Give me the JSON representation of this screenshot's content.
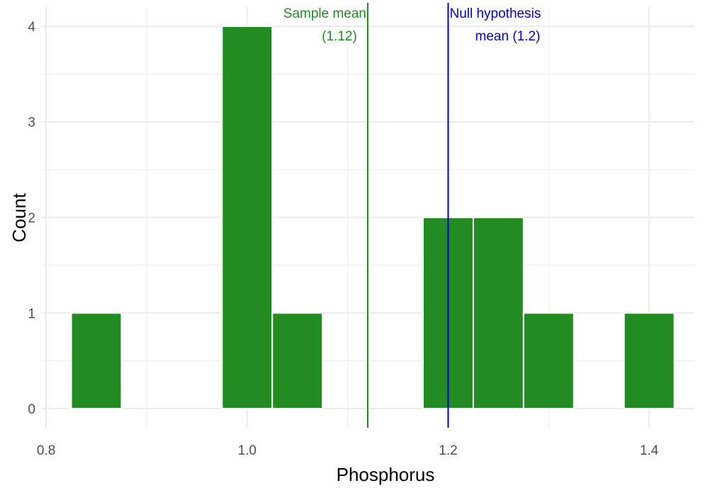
{
  "chart_data": {
    "type": "histogram",
    "xlabel": "Phosphorus",
    "ylabel": "Count",
    "xlim": [
      0.795,
      1.445
    ],
    "ylim": [
      -0.2,
      4.2
    ],
    "x_ticks": [
      0.8,
      1.0,
      1.2,
      1.4
    ],
    "x_tick_labels": [
      "0.8",
      "1.0",
      "1.2",
      "1.4"
    ],
    "y_ticks": [
      0,
      1,
      2,
      3,
      4
    ],
    "y_tick_labels": [
      "0",
      "1",
      "2",
      "3",
      "4"
    ],
    "grid": true,
    "bar_color": "#228b22",
    "bin_width": 0.05,
    "bins": [
      {
        "center": 0.85,
        "count": 1
      },
      {
        "center": 1.0,
        "count": 4
      },
      {
        "center": 1.05,
        "count": 1
      },
      {
        "center": 1.2,
        "count": 2
      },
      {
        "center": 1.25,
        "count": 2
      },
      {
        "center": 1.3,
        "count": 1
      },
      {
        "center": 1.4,
        "count": 1
      }
    ],
    "reference_lines": [
      {
        "x": 1.12,
        "color": "#228b22",
        "label_lines": [
          "Sample mean",
          "(1.12)"
        ],
        "label_anchor": "end"
      },
      {
        "x": 1.2,
        "color": "#0000cd",
        "label_lines": [
          "Null hypothesis",
          "mean (1.2)"
        ],
        "label_anchor": "start"
      }
    ]
  }
}
